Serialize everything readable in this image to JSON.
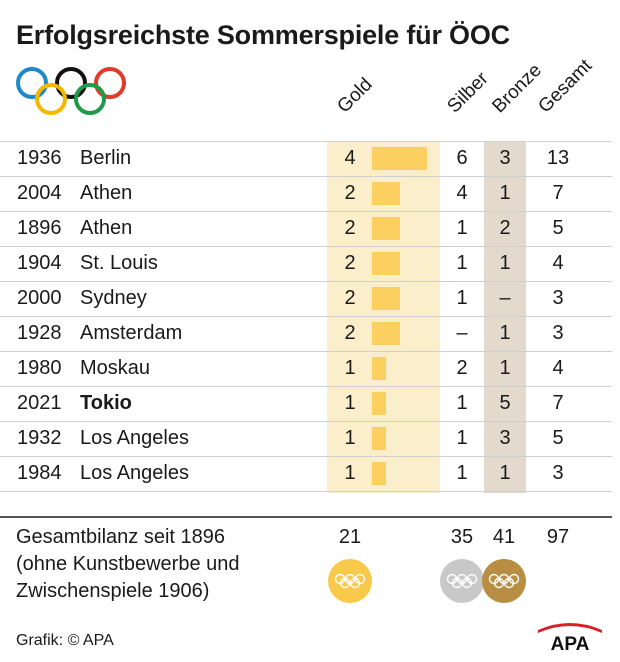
{
  "title": "Erfolgsreichste Sommerspiele für ÖOC",
  "columns": {
    "gold": "Gold",
    "silver": "Silber",
    "bronze": "Bronze",
    "total": "Gesamt"
  },
  "colors": {
    "gold_bar": "#fcd060",
    "gold_column": "#fbefcb",
    "bronze_column": "#e3d9cc",
    "medal_gold": "#f8c94a",
    "medal_silver": "#c8c8c8",
    "medal_bronze": "#b88f42",
    "logo_red": "#d8202a",
    "ring_blue": "#1e88c8",
    "ring_yellow": "#f5b800",
    "ring_black": "#111111",
    "ring_green": "#1f9a48",
    "ring_red": "#e03a2a"
  },
  "chart_data": {
    "type": "table",
    "title": "Erfolgsreichste Sommerspiele für ÖOC",
    "bar_series": "Gold",
    "bar_max": 4,
    "rows": [
      {
        "year": "1936",
        "city": "Berlin",
        "gold": 4,
        "gold_label": "4",
        "silver": "6",
        "bronze": "3",
        "total": "13",
        "highlight": false
      },
      {
        "year": "2004",
        "city": "Athen",
        "gold": 2,
        "gold_label": "2",
        "silver": "4",
        "bronze": "1",
        "total": "7",
        "highlight": false
      },
      {
        "year": "1896",
        "city": "Athen",
        "gold": 2,
        "gold_label": "2",
        "silver": "1",
        "bronze": "2",
        "total": "5",
        "highlight": false
      },
      {
        "year": "1904",
        "city": "St. Louis",
        "gold": 2,
        "gold_label": "2",
        "silver": "1",
        "bronze": "1",
        "total": "4",
        "highlight": false
      },
      {
        "year": "2000",
        "city": "Sydney",
        "gold": 2,
        "gold_label": "2",
        "silver": "1",
        "bronze": "–",
        "total": "3",
        "highlight": false
      },
      {
        "year": "1928",
        "city": "Amsterdam",
        "gold": 2,
        "gold_label": "2",
        "silver": "–",
        "bronze": "1",
        "total": "3",
        "highlight": false
      },
      {
        "year": "1980",
        "city": "Moskau",
        "gold": 1,
        "gold_label": "1",
        "silver": "2",
        "bronze": "1",
        "total": "4",
        "highlight": false
      },
      {
        "year": "2021",
        "city": "Tokio",
        "gold": 1,
        "gold_label": "1",
        "silver": "1",
        "bronze": "5",
        "total": "7",
        "highlight": true
      },
      {
        "year": "1932",
        "city": "Los Angeles",
        "gold": 1,
        "gold_label": "1",
        "silver": "1",
        "bronze": "3",
        "total": "5",
        "highlight": false
      },
      {
        "year": "1984",
        "city": "Los Angeles",
        "gold": 1,
        "gold_label": "1",
        "silver": "1",
        "bronze": "1",
        "total": "3",
        "highlight": false
      }
    ]
  },
  "summary": {
    "line1": "Gesamtbilanz seit 1896",
    "line2": "(ohne Kunstbewerbe und",
    "line3": "Zwischenspiele 1906)",
    "gold": "21",
    "silver": "35",
    "bronze": "41",
    "total": "97"
  },
  "footer": {
    "credit": "Grafik: © APA",
    "logo_text": "APA"
  }
}
